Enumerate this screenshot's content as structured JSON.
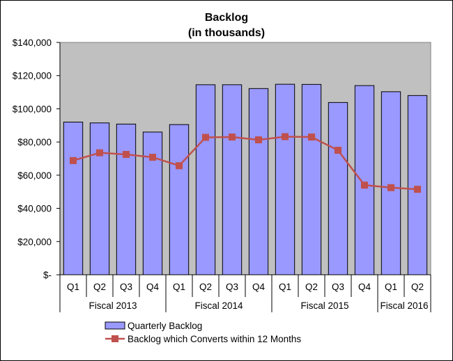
{
  "chart_data": {
    "type": "bar",
    "title": "Backlog",
    "subtitle": "(in thousands)",
    "xlabel": "",
    "ylabel": "",
    "ylim": [
      0,
      140000
    ],
    "ytick_values": [
      0,
      20000,
      40000,
      60000,
      80000,
      100000,
      120000,
      140000
    ],
    "ytick_labels": [
      "$-",
      "$20,000",
      "$40,000",
      "$60,000",
      "$80,000",
      "$100,000",
      "$120,000",
      "$140,000"
    ],
    "categories": [
      "Q1",
      "Q2",
      "Q3",
      "Q4",
      "Q1",
      "Q2",
      "Q3",
      "Q4",
      "Q1",
      "Q2",
      "Q3",
      "Q4",
      "Q1",
      "Q2"
    ],
    "groups": [
      {
        "label": "Fiscal 2013",
        "count": 4
      },
      {
        "label": "Fiscal 2014",
        "count": 4
      },
      {
        "label": "Fiscal 2015",
        "count": 4
      },
      {
        "label": "Fiscal 2016",
        "count": 2
      }
    ],
    "series": [
      {
        "name": "Quarterly Backlog",
        "kind": "bar",
        "color": "#9999FF",
        "values": [
          92000,
          91500,
          90800,
          86000,
          90500,
          114500,
          114500,
          112200,
          114800,
          114700,
          103800,
          114000,
          110300,
          108000
        ]
      },
      {
        "name": "Backlog which Converts within 12 Months",
        "kind": "line",
        "color": "#C0504D",
        "values": [
          68800,
          73500,
          72500,
          70800,
          65700,
          82800,
          83000,
          81300,
          83200,
          83000,
          75000,
          54000,
          52500,
          51500
        ]
      }
    ],
    "plot_background": "#C0C0C0",
    "grid": false,
    "legend_position": "bottom"
  }
}
